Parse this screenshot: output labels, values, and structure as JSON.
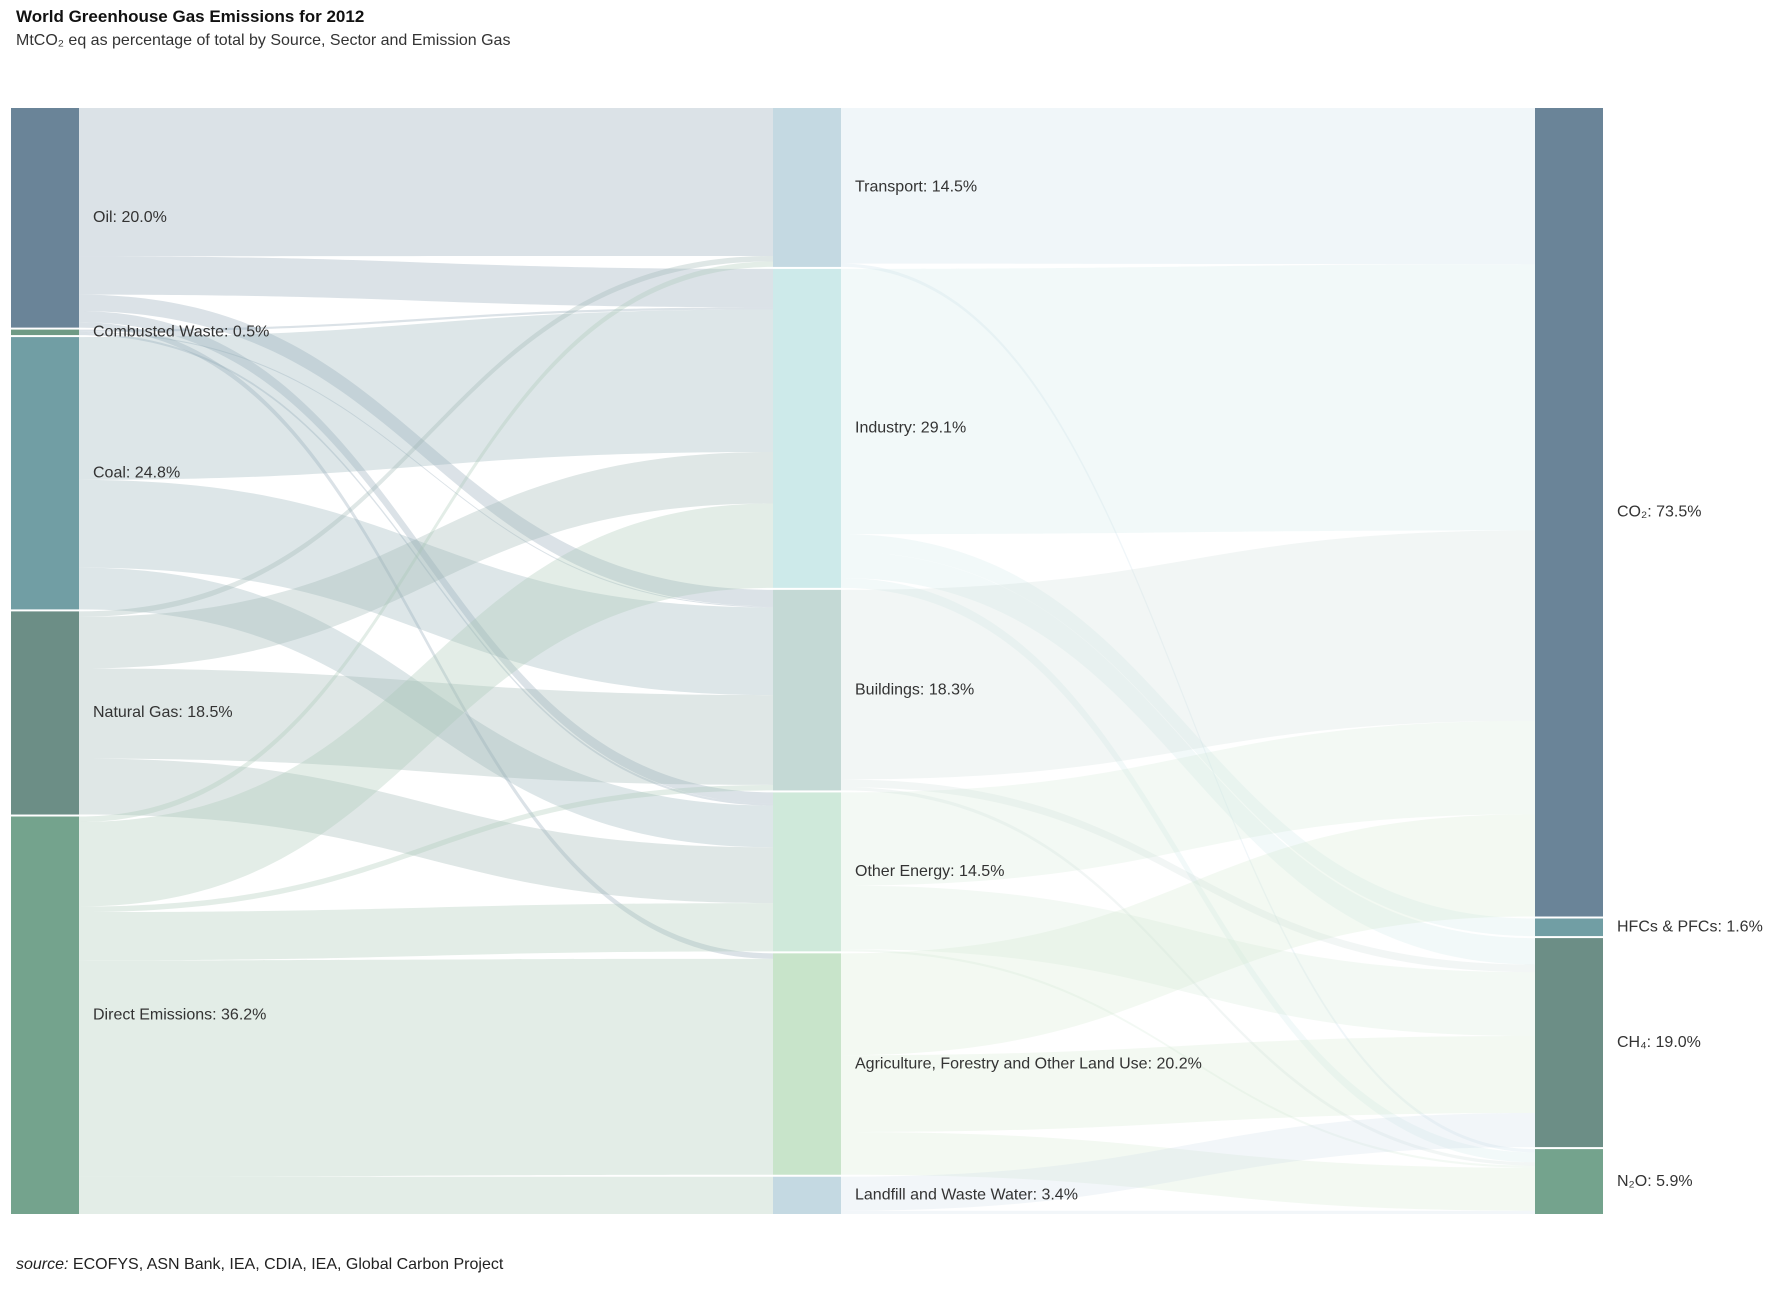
{
  "title": "World Greenhouse Gas Emissions for 2012",
  "subtitle": "MtCO₂ eq as percentage of total by Source, Sector and Emission Gas",
  "source": {
    "label": "source:",
    "text": " ECOFYS, ASN Bank, IEA, CDIA, IEA, Global Carbon Project"
  },
  "chart_data": {
    "type": "sankey",
    "unit": "%",
    "columns": [
      {
        "name": "source",
        "nodes": [
          {
            "id": "oil",
            "label": "Oil: 20.0%",
            "value": 20.0,
            "color": "#6a8498"
          },
          {
            "id": "waste",
            "label": "Combusted Waste: 0.5%",
            "value": 0.5,
            "color": "#6f9a85"
          },
          {
            "id": "coal",
            "label": "Coal: 24.8%",
            "value": 24.8,
            "color": "#719ea4"
          },
          {
            "id": "gas",
            "label": "Natural Gas: 18.5%",
            "value": 18.5,
            "color": "#6c8e86"
          },
          {
            "id": "direct",
            "label": "Direct Emissions: 36.2%",
            "value": 36.2,
            "color": "#74a38d"
          }
        ]
      },
      {
        "name": "sector",
        "nodes": [
          {
            "id": "transport",
            "label": "Transport: 14.5%",
            "value": 14.5,
            "color": "#c4d9e2"
          },
          {
            "id": "industry",
            "label": "Industry: 29.1%",
            "value": 29.1,
            "color": "#cdeaea"
          },
          {
            "id": "buildings",
            "label": "Buildings: 18.3%",
            "value": 18.3,
            "color": "#c4d9d5"
          },
          {
            "id": "otherenergy",
            "label": "Other Energy: 14.5%",
            "value": 14.5,
            "color": "#cfe9da"
          },
          {
            "id": "afolu",
            "label": "Agriculture, Forestry and Other Land Use: 20.2%",
            "value": 20.2,
            "color": "#c8e4ca"
          },
          {
            "id": "landfill",
            "label": "Landfill and Waste Water: 3.4%",
            "value": 3.4,
            "color": "#c4d9e2"
          }
        ]
      },
      {
        "name": "gas",
        "nodes": [
          {
            "id": "co2",
            "label": "CO₂: 73.5%",
            "value": 73.5,
            "color": "#6a8498"
          },
          {
            "id": "hfc",
            "label": "HFCs & PFCs: 1.6%",
            "value": 1.6,
            "color": "#719ea4"
          },
          {
            "id": "ch4",
            "label": "CH₄: 19.0%",
            "value": 19.0,
            "color": "#6c8e86"
          },
          {
            "id": "n2o",
            "label": "N₂O: 5.9%",
            "value": 5.9,
            "color": "#74a38d"
          }
        ]
      }
    ],
    "links": [
      {
        "source": "oil",
        "target": "transport",
        "value": 13.5
      },
      {
        "source": "oil",
        "target": "industry",
        "value": 3.5
      },
      {
        "source": "oil",
        "target": "buildings",
        "value": 1.5
      },
      {
        "source": "oil",
        "target": "otherenergy",
        "value": 1.0
      },
      {
        "source": "oil",
        "target": "afolu",
        "value": 0.5
      },
      {
        "source": "waste",
        "target": "industry",
        "value": 0.2
      },
      {
        "source": "waste",
        "target": "buildings",
        "value": 0.1
      },
      {
        "source": "waste",
        "target": "otherenergy",
        "value": 0.2
      },
      {
        "source": "coal",
        "target": "industry",
        "value": 13.0
      },
      {
        "source": "coal",
        "target": "buildings",
        "value": 8.0
      },
      {
        "source": "coal",
        "target": "otherenergy",
        "value": 3.8
      },
      {
        "source": "gas",
        "target": "transport",
        "value": 0.5
      },
      {
        "source": "gas",
        "target": "industry",
        "value": 4.7
      },
      {
        "source": "gas",
        "target": "buildings",
        "value": 8.2
      },
      {
        "source": "gas",
        "target": "otherenergy",
        "value": 5.1
      },
      {
        "source": "direct",
        "target": "transport",
        "value": 0.5
      },
      {
        "source": "direct",
        "target": "industry",
        "value": 7.7
      },
      {
        "source": "direct",
        "target": "buildings",
        "value": 0.5
      },
      {
        "source": "direct",
        "target": "otherenergy",
        "value": 4.4
      },
      {
        "source": "direct",
        "target": "afolu",
        "value": 19.7
      },
      {
        "source": "direct",
        "target": "landfill",
        "value": 3.4
      },
      {
        "source": "transport",
        "target": "co2",
        "value": 14.2
      },
      {
        "source": "transport",
        "target": "n2o",
        "value": 0.3
      },
      {
        "source": "industry",
        "target": "co2",
        "value": 24.2
      },
      {
        "source": "industry",
        "target": "hfc",
        "value": 1.6
      },
      {
        "source": "industry",
        "target": "ch4",
        "value": 2.4
      },
      {
        "source": "industry",
        "target": "n2o",
        "value": 0.9
      },
      {
        "source": "buildings",
        "target": "co2",
        "value": 17.3
      },
      {
        "source": "buildings",
        "target": "ch4",
        "value": 0.7
      },
      {
        "source": "buildings",
        "target": "n2o",
        "value": 0.3
      },
      {
        "source": "otherenergy",
        "target": "co2",
        "value": 8.5
      },
      {
        "source": "otherenergy",
        "target": "ch4",
        "value": 5.8
      },
      {
        "source": "otherenergy",
        "target": "n2o",
        "value": 0.2
      },
      {
        "source": "afolu",
        "target": "co2",
        "value": 9.3
      },
      {
        "source": "afolu",
        "target": "ch4",
        "value": 7.0
      },
      {
        "source": "afolu",
        "target": "n2o",
        "value": 3.9
      },
      {
        "source": "landfill",
        "target": "ch4",
        "value": 3.1
      },
      {
        "source": "landfill",
        "target": "n2o",
        "value": 0.3
      }
    ]
  }
}
